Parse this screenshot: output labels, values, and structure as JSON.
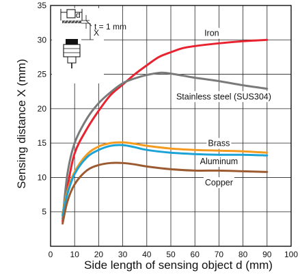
{
  "chart_data": {
    "type": "line",
    "title": "",
    "xlabel": "Side length of sensing object d (mm)",
    "ylabel": "Sensing distance X (mm)",
    "xlim": [
      0,
      100
    ],
    "ylim": [
      0,
      35
    ],
    "xticks": [
      0,
      10,
      20,
      30,
      40,
      50,
      60,
      70,
      80,
      90,
      100
    ],
    "yticks": [
      5,
      10,
      15,
      20,
      25,
      30,
      35
    ],
    "grid": true,
    "series": [
      {
        "name": "Iron",
        "color": "#e8222f",
        "x": [
          5,
          7,
          10,
          15,
          20,
          25,
          30,
          35,
          40,
          45,
          50,
          55,
          60,
          70,
          80,
          90
        ],
        "y": [
          3.6,
          8.5,
          13.5,
          17,
          19.7,
          22,
          23.5,
          25,
          26.3,
          27.5,
          28.2,
          28.8,
          29.1,
          29.5,
          29.8,
          30
        ]
      },
      {
        "name": "Stainless steel (SUS304)",
        "color": "#7a7a7a",
        "x": [
          5,
          7,
          10,
          15,
          20,
          25,
          30,
          35,
          40,
          45,
          48,
          55,
          60,
          70,
          80,
          90
        ],
        "y": [
          4,
          10.5,
          15,
          18.5,
          20.8,
          22.4,
          23.7,
          24.4,
          24.9,
          25.2,
          25.2,
          24.8,
          24.5,
          24,
          23.4,
          22.9
        ]
      },
      {
        "name": "Brass",
        "color": "#f39a1f",
        "x": [
          5,
          7,
          10,
          15,
          20,
          25,
          30,
          35,
          40,
          50,
          60,
          70,
          80,
          90
        ],
        "y": [
          4.8,
          8,
          10.8,
          13.3,
          14.5,
          15,
          15.1,
          14.9,
          14.6,
          14.2,
          14,
          13.9,
          13.8,
          13.6
        ]
      },
      {
        "name": "Aluminum",
        "color": "#1ba3d6",
        "x": [
          5,
          7,
          10,
          15,
          20,
          25,
          30,
          35,
          40,
          50,
          60,
          70,
          80,
          90
        ],
        "y": [
          4.5,
          7.6,
          10.5,
          12.9,
          14,
          14.6,
          14.7,
          14.4,
          14,
          13.6,
          13.4,
          13.3,
          13.3,
          13.2
        ]
      },
      {
        "name": "Copper",
        "color": "#9b5a2f",
        "x": [
          5,
          7,
          10,
          15,
          20,
          25,
          30,
          35,
          40,
          50,
          60,
          70,
          80,
          90
        ],
        "y": [
          3.3,
          6.5,
          9,
          11,
          11.8,
          12.1,
          12.1,
          11.9,
          11.6,
          11.2,
          11,
          11,
          10.9,
          10.8
        ]
      }
    ],
    "inset": {
      "d_label": "d",
      "x_label": "X",
      "t_label": "t = 1 mm"
    }
  }
}
